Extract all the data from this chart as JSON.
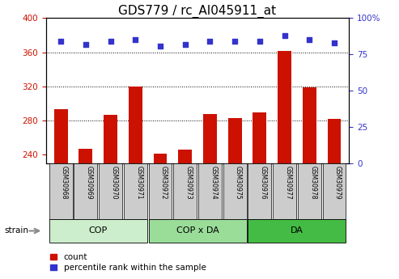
{
  "title": "GDS779 / rc_AI045911_at",
  "samples": [
    "GSM30968",
    "GSM30969",
    "GSM30970",
    "GSM30971",
    "GSM30972",
    "GSM30973",
    "GSM30974",
    "GSM30975",
    "GSM30976",
    "GSM30977",
    "GSM30978",
    "GSM30979"
  ],
  "bar_values": [
    293,
    247,
    287,
    320,
    241,
    246,
    288,
    283,
    290,
    362,
    319,
    282
  ],
  "percentile_values": [
    84,
    82,
    84,
    85,
    81,
    82,
    84,
    84,
    84,
    88,
    85,
    83
  ],
  "bar_color": "#cc1100",
  "dot_color": "#3333cc",
  "ylim_left": [
    230,
    400
  ],
  "ylim_right": [
    0,
    100
  ],
  "yticks_left": [
    240,
    280,
    320,
    360,
    400
  ],
  "yticks_right": [
    0,
    25,
    50,
    75,
    100
  ],
  "groups": [
    {
      "label": "COP",
      "start": 0,
      "end": 3,
      "color": "#cceecc"
    },
    {
      "label": "COP x DA",
      "start": 4,
      "end": 7,
      "color": "#99dd99"
    },
    {
      "label": "DA",
      "start": 8,
      "end": 11,
      "color": "#44bb44"
    }
  ],
  "strain_label": "strain",
  "legend_count_label": "count",
  "legend_percentile_label": "percentile rank within the sample",
  "ylabel_left_color": "#cc1100",
  "ylabel_right_color": "#3333cc",
  "tick_bg_color": "#cccccc",
  "title_fontsize": 11,
  "bar_width": 0.55
}
